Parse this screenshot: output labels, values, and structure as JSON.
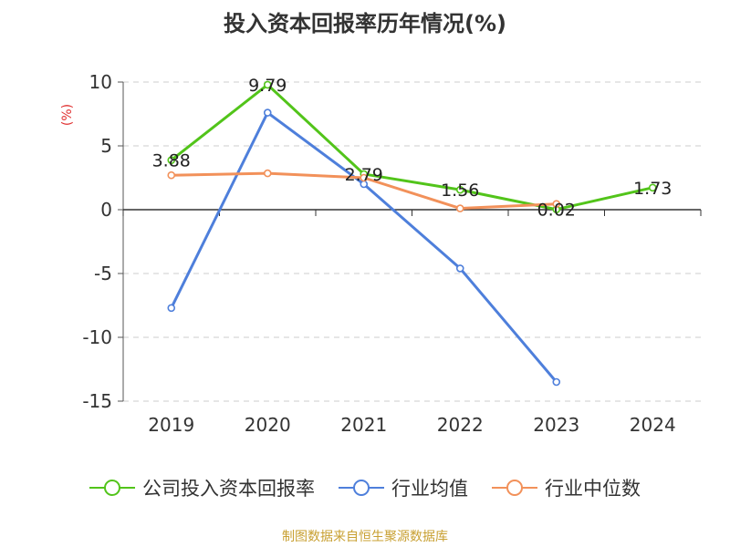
{
  "chart_data": {
    "type": "line",
    "title": "投入资本回报率历年情况(%)",
    "ylabel": "(%)",
    "categories": [
      "2019",
      "2020",
      "2021",
      "2022",
      "2023",
      "2024"
    ],
    "ylim": [
      -15,
      10
    ],
    "yticks": [
      10,
      5,
      0,
      -5,
      -10,
      -15
    ],
    "grid": true,
    "legend_position": "bottom",
    "series": [
      {
        "name": "公司投入资本回报率",
        "color": "#52c41a",
        "values": [
          3.88,
          9.79,
          2.79,
          1.56,
          0.02,
          1.73
        ],
        "labels": [
          "3.88",
          "9.79",
          "2.79",
          "1.56",
          "0.02",
          "1.73"
        ]
      },
      {
        "name": "行业均值",
        "color": "#4e7fdb",
        "values": [
          -7.7,
          7.6,
          2.0,
          -4.6,
          -13.5,
          null
        ]
      },
      {
        "name": "行业中位数",
        "color": "#f2915a",
        "values": [
          2.7,
          2.85,
          2.5,
          0.1,
          0.45,
          null
        ]
      }
    ]
  },
  "source": {
    "text": "制图数据来自恒生聚源数据库",
    "color": "#c8a032"
  },
  "ylabel_color": "#e03030"
}
